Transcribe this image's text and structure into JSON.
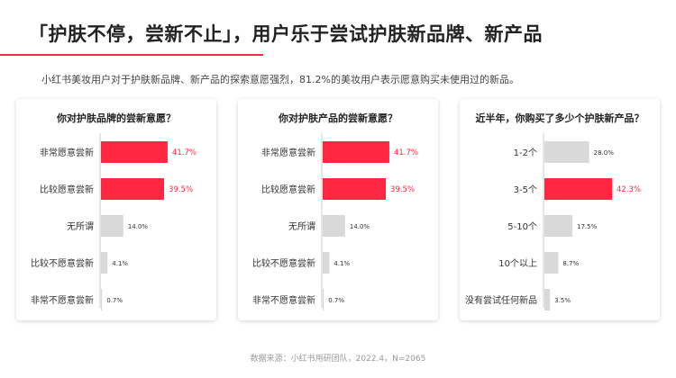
{
  "title": "「护肤不停，尝新不止」，用户乐于尝试护肤新品牌、新产品",
  "subtitle": "小红书美妆用户对于护肤新品牌、新产品的探索意愿强烈，81.2%的美妆用户表示愿意购买未使用过的新品。",
  "footer": "数据来源：小红书用研团队，2022.4，N=2065",
  "colors": {
    "highlight": "#ff2741",
    "neutral": "#d9d9d9",
    "accent_line": "#ff2741"
  },
  "chart_data": [
    {
      "type": "bar",
      "orientation": "horizontal",
      "title": "你对护肤品牌的尝新意愿？",
      "categories": [
        "非常愿意尝新",
        "比较愿意尝新",
        "无所谓",
        "比较不愿意尝新",
        "非常不愿意尝新"
      ],
      "values": [
        41.7,
        39.5,
        14.0,
        4.1,
        0.7
      ],
      "labels": [
        "41.7%",
        "39.5%",
        "14.0%",
        "4.1%",
        "0.7%"
      ],
      "highlighted": [
        true,
        true,
        false,
        false,
        false
      ],
      "unit": "%"
    },
    {
      "type": "bar",
      "orientation": "horizontal",
      "title": "你对护肤产品的尝新意愿？",
      "categories": [
        "非常愿意尝新",
        "比较愿意尝新",
        "无所谓",
        "比较不愿意尝新",
        "非常不愿意尝新"
      ],
      "values": [
        41.7,
        39.5,
        14.0,
        4.1,
        0.7
      ],
      "labels": [
        "41.7%",
        "39.5%",
        "14.0%",
        "4.1%",
        "0.7%"
      ],
      "highlighted": [
        true,
        true,
        false,
        false,
        false
      ],
      "unit": "%"
    },
    {
      "type": "bar",
      "orientation": "horizontal",
      "title": "近半年，你购买了多少个护肤新产品？",
      "categories": [
        "1-2个",
        "3-5个",
        "5-10个",
        "10个以上",
        "没有尝试任何新品"
      ],
      "values": [
        28.0,
        42.3,
        17.5,
        8.7,
        3.5
      ],
      "labels": [
        "28.0%",
        "42.3%",
        "17.5%",
        "8.7%",
        "3.5%"
      ],
      "highlighted": [
        false,
        true,
        false,
        false,
        false
      ],
      "unit": "%"
    }
  ]
}
